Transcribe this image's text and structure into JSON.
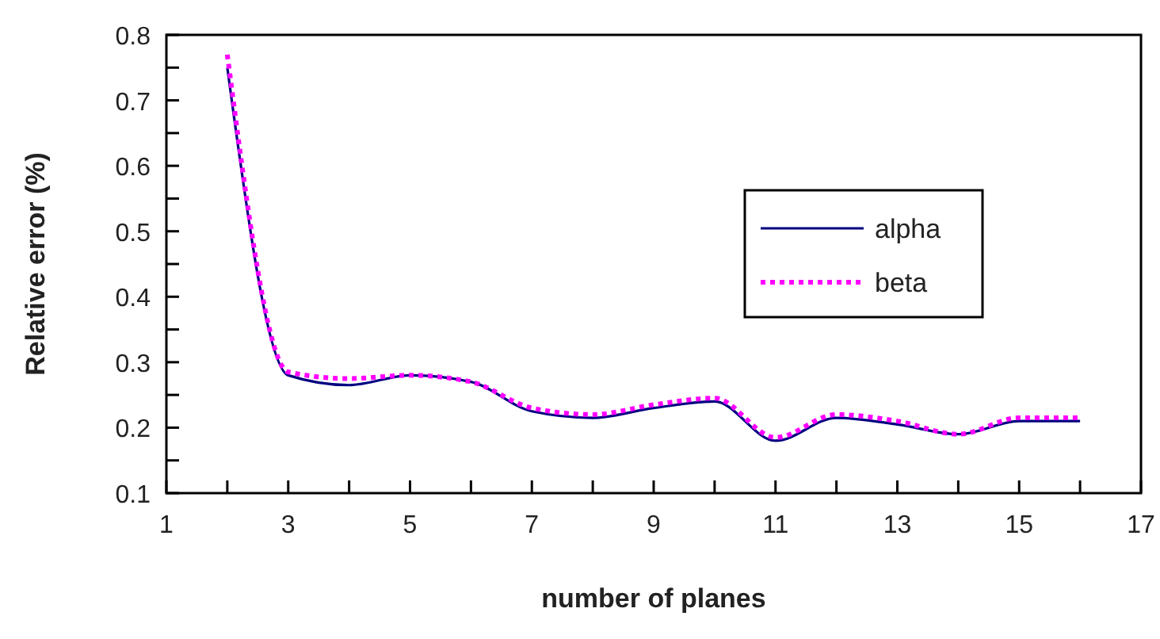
{
  "chart_data": {
    "type": "line",
    "xlabel": "number of planes",
    "ylabel": "Relative error (%)",
    "x": [
      2,
      3,
      4,
      5,
      6,
      7,
      8,
      9,
      10,
      11,
      12,
      13,
      14,
      15,
      16
    ],
    "series": [
      {
        "name": "alpha",
        "color": "#000080",
        "line_style": "solid",
        "values": [
          0.75,
          0.28,
          0.265,
          0.28,
          0.27,
          0.225,
          0.215,
          0.23,
          0.24,
          0.18,
          0.215,
          0.205,
          0.19,
          0.21,
          0.21
        ]
      },
      {
        "name": "beta",
        "color": "#ff00ff",
        "line_style": "dotted",
        "values": [
          0.77,
          0.285,
          0.275,
          0.28,
          0.27,
          0.23,
          0.22,
          0.235,
          0.245,
          0.185,
          0.22,
          0.21,
          0.19,
          0.215,
          0.215
        ]
      }
    ],
    "xlim": [
      1,
      17
    ],
    "xticks": [
      1,
      {
        "value": 2,
        "label": null
      },
      3,
      {
        "value": 4,
        "label": null
      },
      5,
      {
        "value": 6,
        "label": null
      },
      7,
      {
        "value": 8,
        "label": null
      },
      9,
      {
        "value": 10,
        "label": null
      },
      11,
      {
        "value": 12,
        "label": null
      },
      13,
      {
        "value": 14,
        "label": null
      },
      15,
      {
        "value": 16,
        "label": null
      },
      17
    ],
    "ylim": [
      0.1,
      0.8
    ],
    "yticks": [
      0.1,
      {
        "value": 0.15,
        "label": null
      },
      0.2,
      {
        "value": 0.25,
        "label": null
      },
      0.3,
      {
        "value": 0.35,
        "label": null
      },
      0.4,
      {
        "value": 0.45,
        "label": null
      },
      0.5,
      {
        "value": 0.55,
        "label": null
      },
      0.6,
      {
        "value": 0.65,
        "label": null
      },
      0.7,
      {
        "value": 0.75,
        "label": null
      },
      0.8
    ],
    "grid": false,
    "legend": "right",
    "marker": "none"
  }
}
